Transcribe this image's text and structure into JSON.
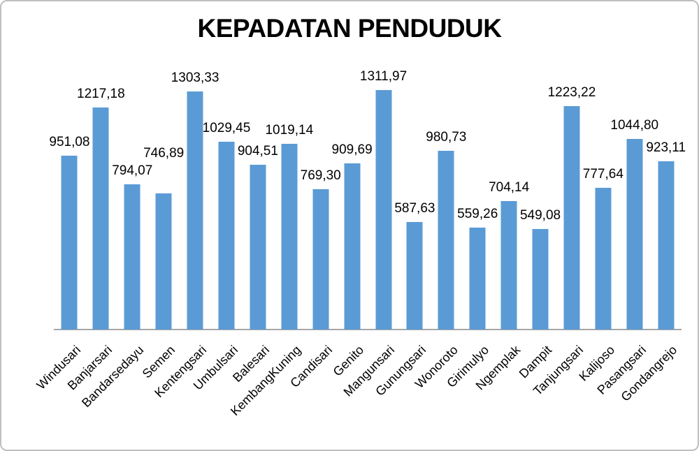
{
  "chart_data": {
    "type": "bar",
    "title": "KEPADATAN PENDUDUK",
    "categories": [
      "Windusari",
      "Banjarsari",
      "Bandarsedayu",
      "Semen",
      "Kentengsari",
      "Umbulsari",
      "Balesari",
      "KembangKuning",
      "Candisari",
      "Genito",
      "Mangunsari",
      "Gunungsari",
      "Wonoroto",
      "Girimulyo",
      "Ngemplak",
      "Dampit",
      "Tanjungsari",
      "Kalijoso",
      "Pasangsari",
      "Gondangrejo"
    ],
    "values": [
      951.08,
      1217.18,
      794.07,
      746.89,
      1303.33,
      1029.45,
      904.51,
      1019.14,
      769.3,
      909.69,
      1311.97,
      587.63,
      980.73,
      559.26,
      704.14,
      549.08,
      1223.22,
      777.64,
      1044.8,
      923.11
    ],
    "value_labels": [
      "951,08",
      "1217,18",
      "794,07",
      "746,89",
      "1303,33",
      "1029,45",
      "904,51",
      "1019,14",
      "769,30",
      "909,69",
      "1311,97",
      "587,63",
      "980,73",
      "559,26",
      "704,14",
      "549,08",
      "1223,22",
      "777,64",
      "1044,80",
      "923,11"
    ],
    "xlabel": "",
    "ylabel": "",
    "ylim": [
      0,
      1400
    ],
    "grid": false,
    "legend": "none",
    "x_tick_rotation_deg": 45,
    "bar_color": "#5B9BD5",
    "axis_line_color": "#a6a6a6",
    "label_color": "#000000",
    "title_color": "#000000",
    "background_color": "#ffffff"
  }
}
